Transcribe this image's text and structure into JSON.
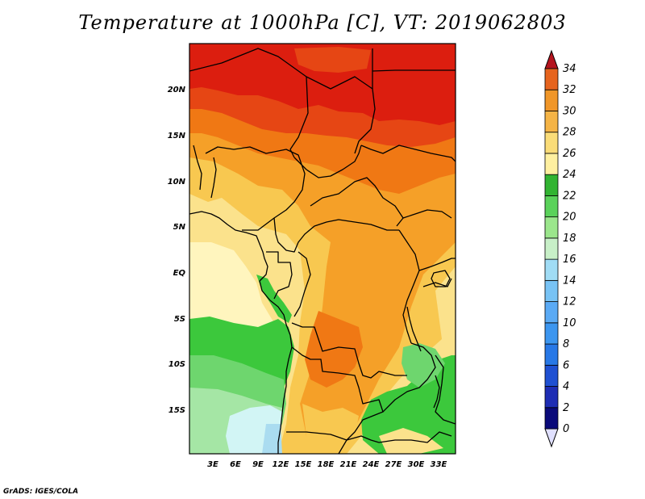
{
  "title": "Temperature at 1000hPa [C], VT: 2019062803",
  "credit": "GrADS: IGES/COLA",
  "lat_labels": [
    "20N",
    "15N",
    "10N",
    "5N",
    "EQ",
    "5S",
    "10S",
    "15S"
  ],
  "lon_labels": [
    "3E",
    "6E",
    "9E",
    "12E",
    "15E",
    "18E",
    "21E",
    "24E",
    "27E",
    "30E",
    "33E"
  ],
  "colorbar": {
    "levels": [
      "0",
      "2",
      "4",
      "6",
      "8",
      "10",
      "12",
      "14",
      "16",
      "18",
      "20",
      "22",
      "24",
      "26",
      "28",
      "30",
      "32",
      "34"
    ],
    "colors": [
      "#0a0a7a",
      "#1e2db4",
      "#1f50d2",
      "#2878e6",
      "#3c96f0",
      "#5aaaf5",
      "#78c3f5",
      "#a0dcf5",
      "#c8f0c8",
      "#9be68c",
      "#5ad25a",
      "#32b432",
      "#fff0a0",
      "#fadc78",
      "#f5b446",
      "#f09628",
      "#e6641e",
      "#d2321e",
      "#b4141e"
    ],
    "under_color": "#e0e0ff",
    "over_color": "#b4141e"
  },
  "map_colors": {
    "c34": "#dc1e0f",
    "c32": "#e64614",
    "c30": "#f07814",
    "c28": "#f5a028",
    "c26": "#f8c850",
    "c24": "#fbe28c",
    "c22": "#fff5be",
    "c20": "#3cc83c",
    "c18": "#6ed66e",
    "c16": "#a5e6a5",
    "c14": "#d2f5f5",
    "c12": "#aadcf0",
    "c10": "#78b4e6"
  }
}
